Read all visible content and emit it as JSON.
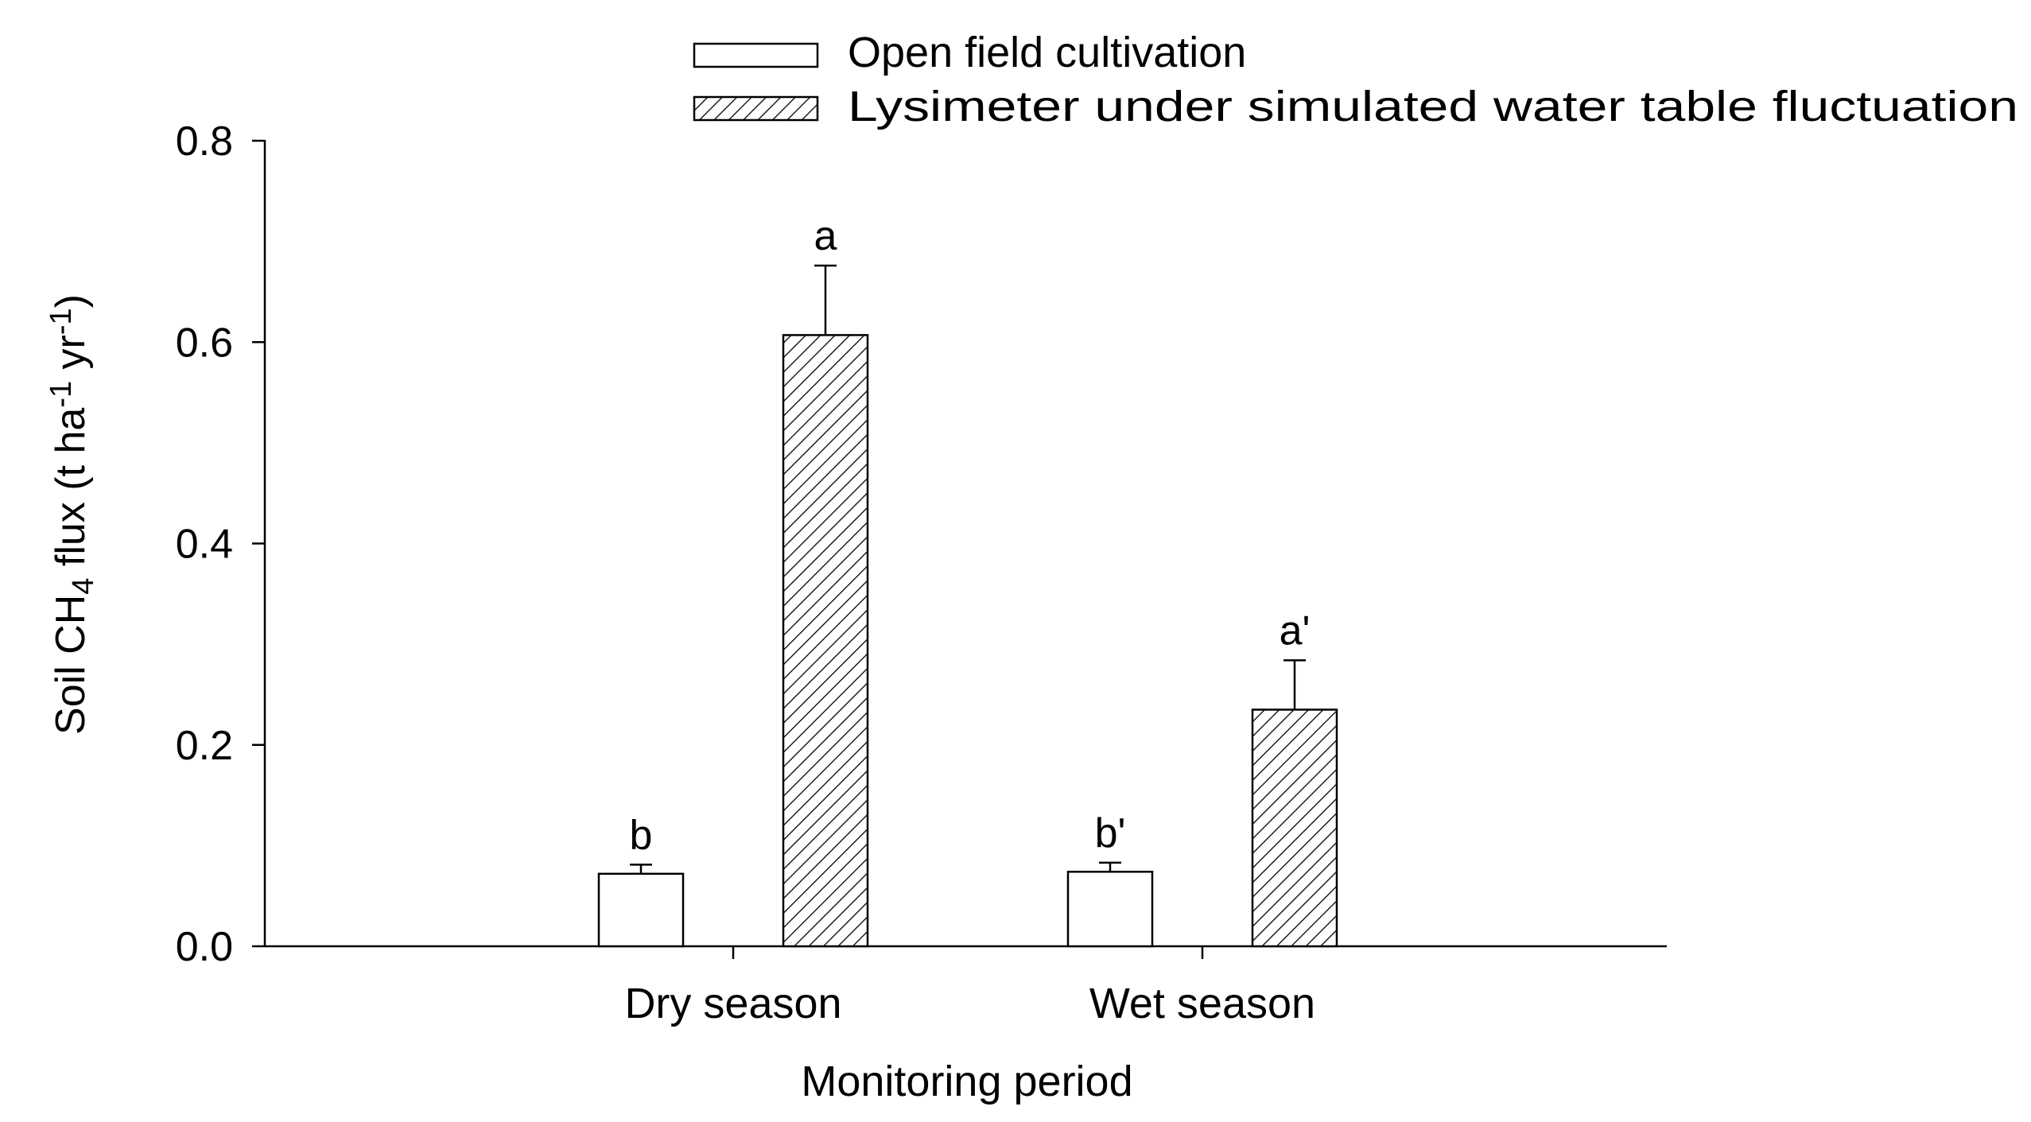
{
  "chart_data": {
    "type": "bar",
    "title": "",
    "xlabel": "Monitoring period",
    "ylabel": {
      "parts": [
        {
          "text": "Soil CH",
          "style": "normal"
        },
        {
          "text": "4",
          "style": "sub"
        },
        {
          "text": " flux (t ha",
          "style": "normal"
        },
        {
          "text": "-1",
          "style": "sup"
        },
        {
          "text": " yr",
          "style": "normal"
        },
        {
          "text": "-1",
          "style": "sup"
        },
        {
          "text": ")",
          "style": "normal"
        }
      ]
    },
    "ylim": [
      0,
      0.8
    ],
    "yticks": [
      "0.0",
      "0.2",
      "0.4",
      "0.6",
      "0.8"
    ],
    "ytick_values": [
      0,
      0.2,
      0.4,
      0.6,
      0.8
    ],
    "categories": [
      "Dry season",
      "Wet season"
    ],
    "series": [
      {
        "name": "Open field cultivation",
        "fill": "open",
        "values": [
          0.072,
          0.074
        ],
        "errors": [
          0.009,
          0.009
        ],
        "labels": [
          "b",
          "b'"
        ]
      },
      {
        "name": "Lysimeter under simulated water table fluctuation",
        "fill": "hatched",
        "values": [
          0.607,
          0.235
        ],
        "errors": [
          0.069,
          0.049
        ],
        "labels": [
          "a",
          "a'"
        ]
      }
    ],
    "legend_position": "top-right"
  },
  "colors": {
    "axis": "#000000",
    "bar_open_fill": "#ffffff",
    "hatch": "#000000"
  }
}
